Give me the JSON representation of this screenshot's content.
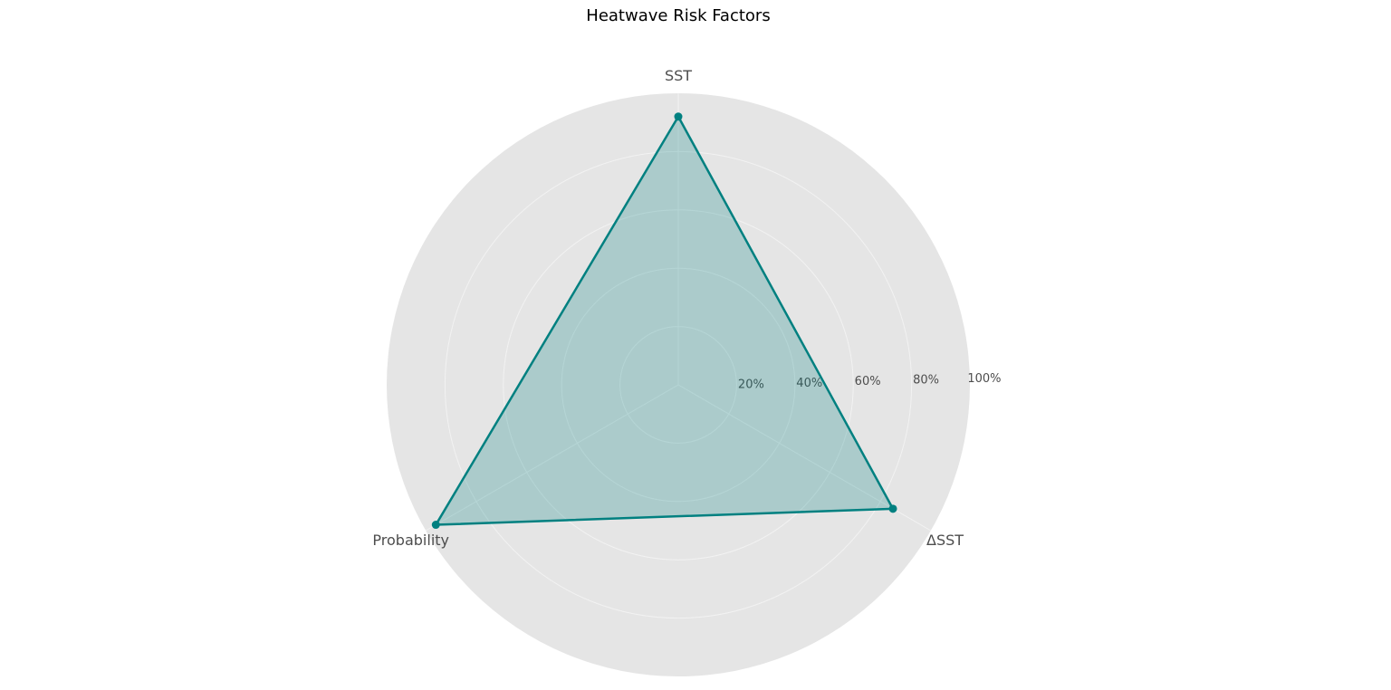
{
  "chart_data": {
    "type": "radar",
    "title": "Heatwave Risk Factors",
    "axes": [
      "SST",
      "ΔSST",
      "Probability"
    ],
    "series": [
      {
        "values": [
          92,
          85,
          96
        ],
        "color": "#008080",
        "fill_color": "#008080"
      }
    ],
    "radial_ticks": [
      20,
      40,
      60,
      80,
      100
    ],
    "radial_tick_labels": [
      "20%",
      "40%",
      "60%",
      "80%",
      "100%"
    ],
    "rlim": [
      0,
      100
    ],
    "grid": true,
    "background_color": "#e5e5e5",
    "grid_color": "#f2f2f2"
  }
}
